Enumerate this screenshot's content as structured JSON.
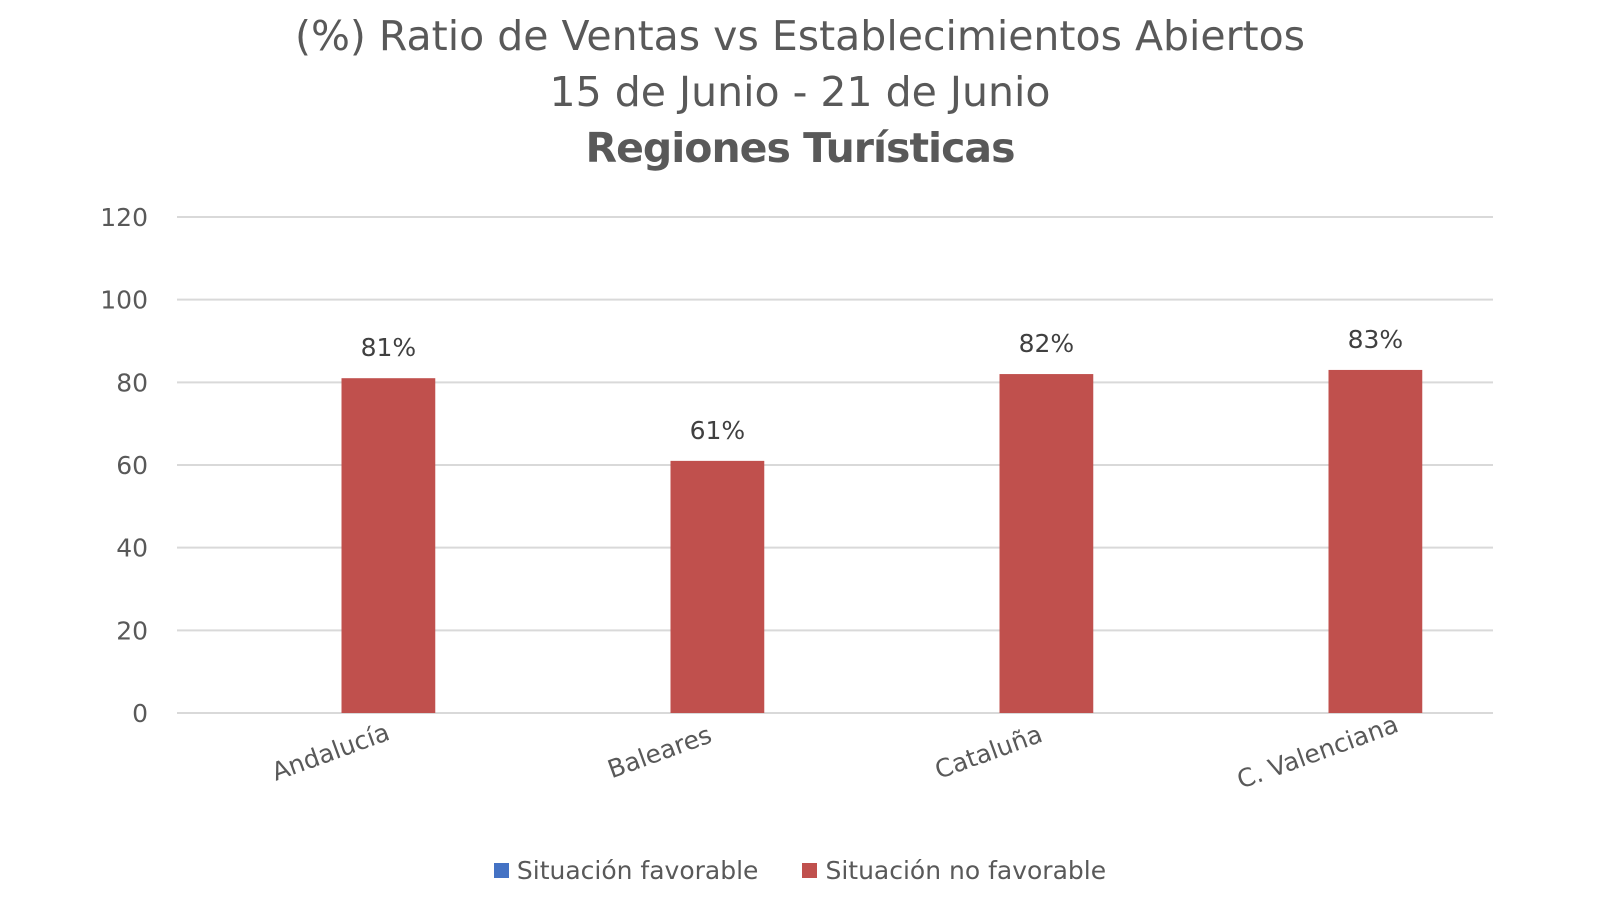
{
  "chart_data": {
    "type": "bar",
    "title_lines": [
      "(%) Ratio de Ventas vs Establecimientos  Abiertos",
      "15 de Junio - 21 de Junio",
      "Regiones Turísticas"
    ],
    "categories": [
      "Andalucía",
      "Baleares",
      "Cataluña",
      "C. Valenciana"
    ],
    "series": [
      {
        "name": "Situación favorable",
        "color": "#4472C4",
        "values": [
          null,
          null,
          null,
          null
        ],
        "data_labels": [
          "",
          "",
          "",
          ""
        ]
      },
      {
        "name": "Situación no favorable",
        "color": "#C0504D",
        "values": [
          81,
          61,
          82,
          83
        ],
        "data_labels": [
          "81%",
          "61%",
          "82%",
          "83%"
        ]
      }
    ],
    "y_ticks": [
      "0",
      "20",
      "40",
      "60",
      "80",
      "100",
      "120"
    ],
    "ylim": [
      0,
      120
    ],
    "grid": true,
    "legend_position": "bottom",
    "xlabel": "",
    "ylabel": ""
  }
}
